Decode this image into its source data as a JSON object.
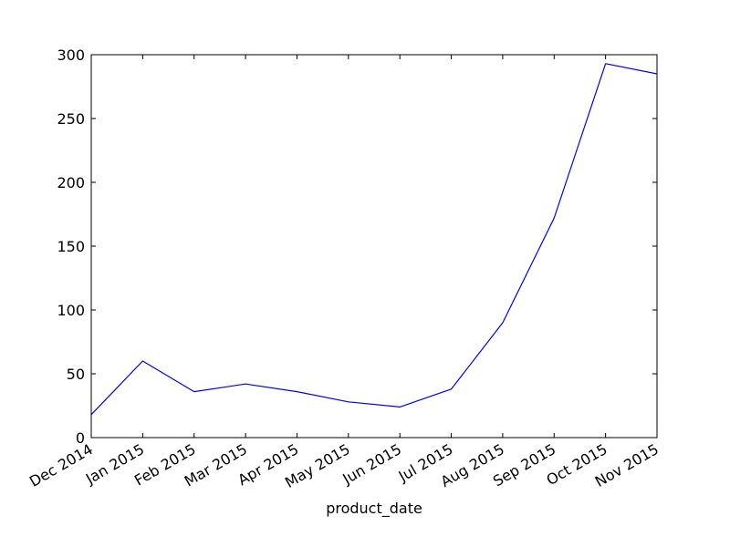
{
  "chart_data": {
    "type": "line",
    "title": "",
    "xlabel": "product_date",
    "ylabel": "",
    "x": [
      "Dec 2014",
      "Jan 2015",
      "Feb 2015",
      "Mar 2015",
      "Apr 2015",
      "May 2015",
      "Jun 2015",
      "Jul 2015",
      "Aug 2015",
      "Sep 2015",
      "Oct 2015",
      "Nov 2015"
    ],
    "series": [
      {
        "values": [
          18,
          60,
          36,
          42,
          36,
          28,
          24,
          38,
          90,
          172,
          293,
          285
        ],
        "color": "#0000ff"
      }
    ],
    "xticks": [
      "Dec 2014",
      "Jan 2015",
      "Feb 2015",
      "Mar 2015",
      "Apr 2015",
      "May 2015",
      "Jun 2015",
      "Jul 2015",
      "Aug 2015",
      "Sep 2015",
      "Oct 2015",
      "Nov 2015"
    ],
    "yticks": [
      "0",
      "50",
      "100",
      "150",
      "200",
      "250",
      "300"
    ],
    "ylim": [
      0,
      300
    ],
    "grid": false,
    "legend": "none"
  }
}
